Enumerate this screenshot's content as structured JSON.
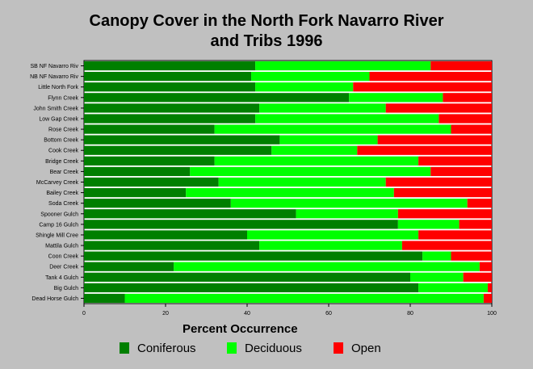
{
  "chart_data": {
    "type": "bar",
    "orientation": "horizontal",
    "stacked": true,
    "title": [
      "Canopy Cover in the North Fork Navarro River",
      "and Tribs 1996"
    ],
    "xlabel": "",
    "ylabel": "",
    "xlim": [
      0,
      100
    ],
    "xticks": [
      "0",
      "20",
      "40",
      "60",
      "80",
      "100"
    ],
    "grid": false,
    "legend_title": "Percent Occurrence",
    "legend_position": "bottom",
    "categories": [
      "SB NF Navarro Riv",
      "NB NF Navarro Riv",
      "Little North Fork",
      "Flynn Creek",
      "John Smith Creek",
      "Low Gap Creek",
      "Rose Creek",
      "Bottom Creek",
      "Cook Creek",
      "Bridge Creek",
      "Bear Creek",
      "McCarvey Creek",
      "Bailey Creek",
      "Soda Creek",
      "Spooner Gulch",
      "Camp 16 Gulch",
      "Shingle Mill Cree",
      "Mattila Gulch",
      "Coon Creek",
      "Deer Creek",
      "Tank 4 Gulch",
      "Big Gulch",
      "Dead Horse Gulch"
    ],
    "series": [
      {
        "name": "Coniferous",
        "color": "#007f00",
        "values": [
          42,
          41,
          42,
          65,
          43,
          42,
          32,
          48,
          46,
          32,
          26,
          33,
          25,
          36,
          52,
          77,
          40,
          43,
          83,
          22,
          80,
          82,
          10
        ]
      },
      {
        "name": "Deciduous",
        "color": "#00ff00",
        "values": [
          43,
          29,
          24,
          23,
          31,
          45,
          58,
          24,
          21,
          50,
          59,
          41,
          51,
          58,
          25,
          15,
          42,
          35,
          7,
          75,
          13,
          17,
          88
        ]
      },
      {
        "name": "Open",
        "color": "#ff0000",
        "values": [
          15,
          30,
          34,
          12,
          26,
          13,
          10,
          28,
          33,
          18,
          15,
          26,
          24,
          6,
          23,
          8,
          18,
          22,
          10,
          3,
          7,
          1,
          2
        ]
      }
    ]
  }
}
